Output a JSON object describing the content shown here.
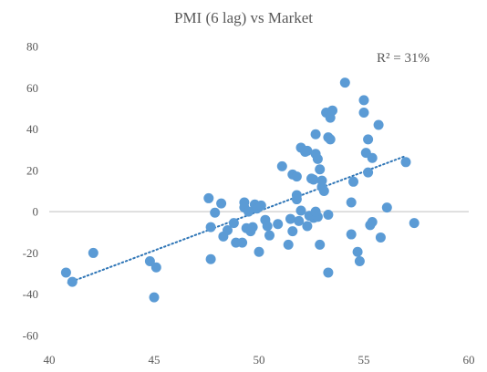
{
  "chart_data": {
    "type": "scatter",
    "title": "PMI (6 lag) vs Market",
    "annotation": "R² = 31%",
    "xlabel": "",
    "ylabel": "",
    "xlim": [
      40,
      60
    ],
    "ylim": [
      -60,
      80
    ],
    "x_ticks": [
      40,
      45,
      50,
      55,
      60
    ],
    "y_ticks": [
      -60,
      -40,
      -20,
      0,
      20,
      40,
      60,
      80
    ],
    "grid": false,
    "zero_line": true,
    "marker_color": "#5B9BD5",
    "trendline": {
      "type": "linear",
      "style": "dotted",
      "color": "#2E75B6",
      "x": [
        40.9,
        57.0
      ],
      "y": [
        -34.5,
        27.0
      ]
    },
    "points": [
      {
        "x": 40.8,
        "y": -29.5
      },
      {
        "x": 41.1,
        "y": -34
      },
      {
        "x": 42.1,
        "y": -20
      },
      {
        "x": 44.8,
        "y": -24
      },
      {
        "x": 45.1,
        "y": -27
      },
      {
        "x": 45.0,
        "y": -41.5
      },
      {
        "x": 47.6,
        "y": 6.5
      },
      {
        "x": 47.7,
        "y": -7.5
      },
      {
        "x": 47.9,
        "y": -0.5
      },
      {
        "x": 47.7,
        "y": -23
      },
      {
        "x": 48.2,
        "y": 4
      },
      {
        "x": 48.3,
        "y": -12
      },
      {
        "x": 48.5,
        "y": -9
      },
      {
        "x": 48.8,
        "y": -5.5
      },
      {
        "x": 48.9,
        "y": -15
      },
      {
        "x": 49.2,
        "y": -15
      },
      {
        "x": 49.3,
        "y": 4.5
      },
      {
        "x": 49.3,
        "y": 2
      },
      {
        "x": 49.4,
        "y": -8
      },
      {
        "x": 49.6,
        "y": -9.5
      },
      {
        "x": 49.5,
        "y": 0
      },
      {
        "x": 49.7,
        "y": -7.5
      },
      {
        "x": 49.8,
        "y": 3.5
      },
      {
        "x": 49.9,
        "y": 1.5
      },
      {
        "x": 50.0,
        "y": -19.5
      },
      {
        "x": 50.1,
        "y": 3
      },
      {
        "x": 50.3,
        "y": -4
      },
      {
        "x": 50.4,
        "y": -7
      },
      {
        "x": 50.5,
        "y": -11.5
      },
      {
        "x": 50.9,
        "y": -6
      },
      {
        "x": 51.1,
        "y": 22
      },
      {
        "x": 51.4,
        "y": -16
      },
      {
        "x": 51.5,
        "y": -3.5
      },
      {
        "x": 51.6,
        "y": -9.5
      },
      {
        "x": 51.6,
        "y": 18
      },
      {
        "x": 51.8,
        "y": 17
      },
      {
        "x": 51.8,
        "y": 8
      },
      {
        "x": 51.8,
        "y": 6
      },
      {
        "x": 51.9,
        "y": -4.5
      },
      {
        "x": 52.0,
        "y": 0.5
      },
      {
        "x": 52.0,
        "y": 31
      },
      {
        "x": 52.2,
        "y": 29
      },
      {
        "x": 52.3,
        "y": -7
      },
      {
        "x": 52.3,
        "y": 29.5
      },
      {
        "x": 52.4,
        "y": -2
      },
      {
        "x": 52.5,
        "y": 16
      },
      {
        "x": 52.6,
        "y": 15.5
      },
      {
        "x": 52.6,
        "y": -3
      },
      {
        "x": 52.7,
        "y": 37.5
      },
      {
        "x": 52.8,
        "y": -2.5
      },
      {
        "x": 52.7,
        "y": 28
      },
      {
        "x": 52.7,
        "y": 0
      },
      {
        "x": 52.8,
        "y": 25.5
      },
      {
        "x": 52.9,
        "y": 20.5
      },
      {
        "x": 52.9,
        "y": -16
      },
      {
        "x": 53.0,
        "y": 12
      },
      {
        "x": 53.0,
        "y": 15
      },
      {
        "x": 53.1,
        "y": 10
      },
      {
        "x": 53.2,
        "y": 48
      },
      {
        "x": 53.3,
        "y": 36
      },
      {
        "x": 53.3,
        "y": -1.5
      },
      {
        "x": 53.4,
        "y": 35
      },
      {
        "x": 53.4,
        "y": 45.5
      },
      {
        "x": 53.5,
        "y": 49
      },
      {
        "x": 53.3,
        "y": -29.5
      },
      {
        "x": 54.1,
        "y": 62.5
      },
      {
        "x": 54.4,
        "y": 4.5
      },
      {
        "x": 54.4,
        "y": -11
      },
      {
        "x": 54.5,
        "y": 14.5
      },
      {
        "x": 54.7,
        "y": -19.5
      },
      {
        "x": 54.8,
        "y": -24
      },
      {
        "x": 55.0,
        "y": 54
      },
      {
        "x": 55.0,
        "y": 48
      },
      {
        "x": 55.1,
        "y": 28.5
      },
      {
        "x": 55.2,
        "y": 35
      },
      {
        "x": 55.2,
        "y": 19
      },
      {
        "x": 55.3,
        "y": -6.5
      },
      {
        "x": 55.4,
        "y": 26
      },
      {
        "x": 55.4,
        "y": -5
      },
      {
        "x": 55.7,
        "y": 42
      },
      {
        "x": 55.8,
        "y": -12.5
      },
      {
        "x": 56.1,
        "y": 2
      },
      {
        "x": 57.0,
        "y": 24
      },
      {
        "x": 57.4,
        "y": -5.5
      }
    ]
  }
}
